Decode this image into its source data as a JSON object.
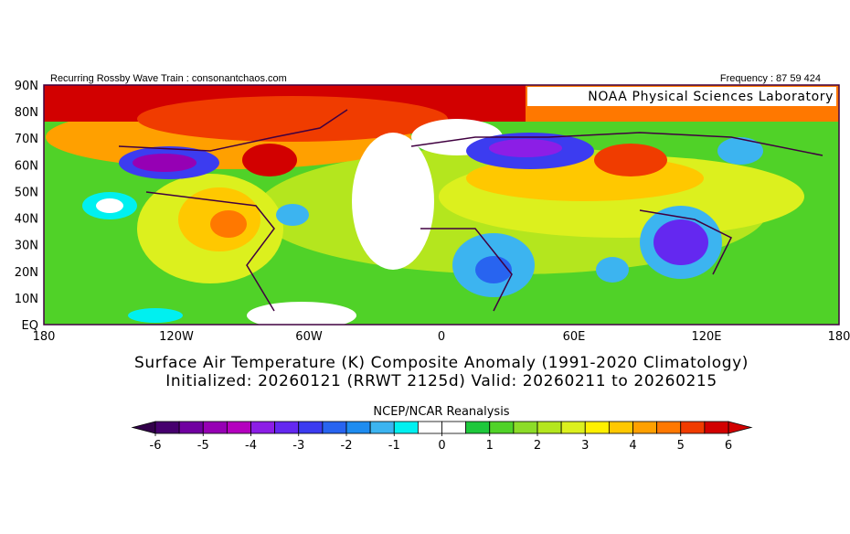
{
  "header": {
    "left": "Recurring Rossby Wave Train : consonantchaos.com",
    "right": "Frequency : 87 59 424",
    "badge": "NOAA Physical Sciences Laboratory"
  },
  "map": {
    "lon_labels": [
      "180",
      "120W",
      "60W",
      "0",
      "60E",
      "120E",
      "180"
    ],
    "lat_labels": [
      "90N",
      "80N",
      "70N",
      "60N",
      "50N",
      "40N",
      "30N",
      "20N",
      "10N",
      "EQ"
    ]
  },
  "title": {
    "line1": "Surface Air Temperature (K) Composite Anomaly (1991-2020 Climatology)",
    "line2": "Initialized: 20260121 (RRWT 2125d) Valid: 20260211 to 20260215"
  },
  "colorbar": {
    "title": "NCEP/NCAR Reanalysis",
    "lim": [
      -6,
      6
    ],
    "ticks": [
      -6,
      -5,
      -4,
      -3,
      -2,
      -1,
      0,
      1,
      2,
      3,
      4,
      5,
      6
    ],
    "levels": [
      -6,
      -5.5,
      -5,
      -4.5,
      -4,
      -3.5,
      -3,
      -2.5,
      -2,
      -1.5,
      -1,
      -0.5,
      0,
      0.5,
      1,
      1.5,
      2,
      2.5,
      3,
      3.5,
      4,
      4.5,
      5,
      5.5,
      6
    ],
    "colors": [
      "#46006e",
      "#7000a0",
      "#9600b4",
      "#b400be",
      "#8c1ee6",
      "#6428f0",
      "#3c3cf0",
      "#2864f0",
      "#1e8cf0",
      "#3cb4f0",
      "#00f0f0",
      "#ffffff",
      "#ffffff",
      "#1ec83c",
      "#50d228",
      "#8cdc28",
      "#b4e61e",
      "#dcf01e",
      "#fff000",
      "#ffc800",
      "#ffa000",
      "#ff7800",
      "#f03c00",
      "#d20000"
    ],
    "under_color": "#32004a",
    "over_color": "#d20000"
  }
}
